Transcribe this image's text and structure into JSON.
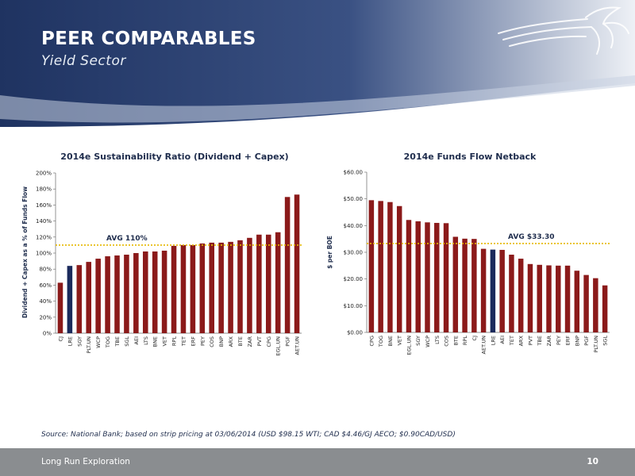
{
  "header": {
    "title": "PEER COMPARABLES",
    "subtitle": "Yield Sector"
  },
  "footer": {
    "company": "Long Run Exploration",
    "page_number": "10"
  },
  "source_note": "Source: National Bank; based on strip pricing at 03/06/2014 (USD $98.15 WTI; CAD $4.46/GJ AECO; $0.90CAD/USD)",
  "colors": {
    "bar": "#8b1a1a",
    "highlight_bar": "#1b2a5c",
    "avg_line": "#e6b800",
    "header_dark": "#1f3361",
    "footer": "#8a8d90"
  },
  "logo": {
    "icon": "horse-icon"
  },
  "chart_data": [
    {
      "type": "bar",
      "title": "2014e Sustainability Ratio (Dividend + Capex)",
      "ylabel": "Dividend + Capex as a % of Funds Flow",
      "ylim": [
        0,
        200
      ],
      "yticks": [
        "0%",
        "20%",
        "40%",
        "60%",
        "80%",
        "100%",
        "120%",
        "140%",
        "160%",
        "180%",
        "200%"
      ],
      "categories": [
        "CJ",
        "LRE",
        "SGY",
        "PLT.UN",
        "WCP",
        "TOG",
        "TBE",
        "SGL",
        "AEI",
        "LTS",
        "BNE",
        "VET",
        "RPL",
        "TET",
        "ERF",
        "PEY",
        "COS",
        "BNP",
        "ARX",
        "BTE",
        "ZAR",
        "PVT",
        "CPG",
        "EGL.UN",
        "PGF",
        "AET.UN"
      ],
      "values": [
        63,
        84,
        85,
        89,
        93,
        96,
        97,
        98,
        100,
        102,
        102,
        103,
        109,
        110,
        110,
        112,
        113,
        113,
        114,
        116,
        119,
        123,
        123,
        126,
        170,
        173
      ],
      "highlight": "LRE",
      "avg_value": 110,
      "avg_label": "AVG 110%"
    },
    {
      "type": "bar",
      "title": "2014e Funds Flow Netback",
      "ylabel": "$ per BOE",
      "ylim": [
        0,
        60
      ],
      "yticks": [
        "$0.00",
        "$10.00",
        "$20.00",
        "$30.00",
        "$40.00",
        "$50.00",
        "$60.00"
      ],
      "categories": [
        "CPG",
        "TOG",
        "BNE",
        "VET",
        "EGL.UN",
        "SGY",
        "WCP",
        "LTS",
        "COS",
        "BTE",
        "RPL",
        "CJ",
        "AET.UN",
        "LRE",
        "AEI",
        "TET",
        "ARX",
        "PVT",
        "TBE",
        "ZAR",
        "PEY",
        "ERF",
        "BNP",
        "PGF",
        "PLT.UN",
        "SGL"
      ],
      "values": [
        49.5,
        49.2,
        48.8,
        47.3,
        42.1,
        41.6,
        41.2,
        41.0,
        40.9,
        35.8,
        35.1,
        35.0,
        31.3,
        31.0,
        30.9,
        29.1,
        27.6,
        25.6,
        25.3,
        25.1,
        25.0,
        25.0,
        23.1,
        21.5,
        20.3,
        17.6
      ],
      "highlight": "LRE",
      "avg_value": 33.3,
      "avg_label": "AVG $33.30"
    }
  ]
}
